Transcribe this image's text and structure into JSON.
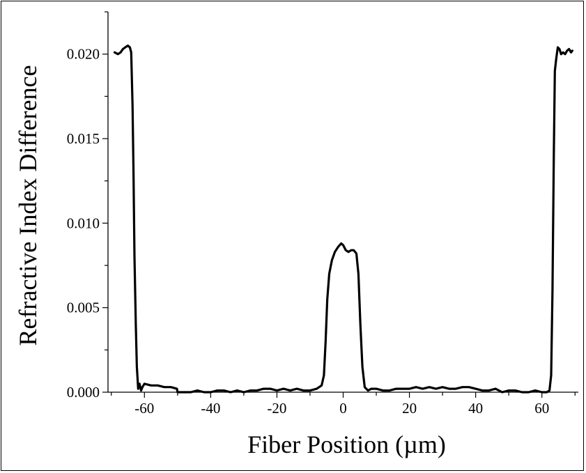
{
  "chart_data": {
    "type": "line",
    "title": "",
    "xlabel": "Fiber Position (µm)",
    "ylabel": "Refractive Index Difference",
    "xlim": [
      -71,
      71
    ],
    "ylim": [
      0,
      0.0225
    ],
    "x_ticks": [
      -60,
      -40,
      -20,
      0,
      20,
      40,
      60
    ],
    "x_tick_labels": [
      "-60",
      "-40",
      "-20",
      "0",
      "20",
      "40",
      "60"
    ],
    "y_ticks": [
      0,
      0.005,
      0.01,
      0.015,
      0.02
    ],
    "y_tick_labels": [
      "0.000",
      "0.005",
      "0.010",
      "0.015",
      "0.020"
    ],
    "grid": false,
    "line_color": "#000000",
    "series": [
      {
        "values": [
          [
            -69,
            0.0201
          ],
          [
            -68,
            0.02
          ],
          [
            -67.2,
            0.0201
          ],
          [
            -66.5,
            0.0203
          ],
          [
            -65.8,
            0.0204
          ],
          [
            -65,
            0.0205
          ],
          [
            -64.4,
            0.0204
          ],
          [
            -64.0,
            0.0201
          ],
          [
            -63.6,
            0.017
          ],
          [
            -63.3,
            0.013
          ],
          [
            -63.0,
            0.008
          ],
          [
            -62.6,
            0.004
          ],
          [
            -62.3,
            0.0015
          ],
          [
            -61.9,
            0.0002
          ],
          [
            -61.5,
            0.0005
          ],
          [
            -61,
            0.0001
          ],
          [
            -60.6,
            0.0003
          ],
          [
            -60,
            0.0005
          ],
          [
            -58,
            0.0004
          ],
          [
            -56,
            0.0004
          ],
          [
            -54,
            0.0003
          ],
          [
            -52,
            0.0003
          ],
          [
            -50.2,
            0.0002
          ],
          [
            -50,
            0.0
          ],
          [
            -48,
            0.0
          ],
          [
            -46,
            0.0
          ],
          [
            -44,
            0.0001
          ],
          [
            -42,
            0.0
          ],
          [
            -40,
            0.0
          ],
          [
            -38,
            0.0001
          ],
          [
            -36,
            0.0001
          ],
          [
            -34,
            0.0
          ],
          [
            -32,
            0.0001
          ],
          [
            -30,
            0.0
          ],
          [
            -28,
            0.0001
          ],
          [
            -26,
            0.0001
          ],
          [
            -24,
            0.0002
          ],
          [
            -22,
            0.0002
          ],
          [
            -20,
            0.0001
          ],
          [
            -18,
            0.0002
          ],
          [
            -16,
            0.0001
          ],
          [
            -14,
            0.0002
          ],
          [
            -12,
            0.0001
          ],
          [
            -10,
            0.0001
          ],
          [
            -8,
            0.0002
          ],
          [
            -6.5,
            0.0004
          ],
          [
            -5.8,
            0.001
          ],
          [
            -5.3,
            0.003
          ],
          [
            -4.8,
            0.0055
          ],
          [
            -4.2,
            0.007
          ],
          [
            -3.4,
            0.0078
          ],
          [
            -2.5,
            0.0083
          ],
          [
            -1.5,
            0.0086
          ],
          [
            -0.6,
            0.0088
          ],
          [
            0,
            0.0087
          ],
          [
            0.8,
            0.0084
          ],
          [
            1.6,
            0.0083
          ],
          [
            2.4,
            0.0084
          ],
          [
            3.2,
            0.0084
          ],
          [
            4.0,
            0.0082
          ],
          [
            4.6,
            0.007
          ],
          [
            5.2,
            0.004
          ],
          [
            5.8,
            0.0015
          ],
          [
            6.5,
            0.0003
          ],
          [
            7.5,
            0.0001
          ],
          [
            8.5,
            0.0002
          ],
          [
            10,
            0.0002
          ],
          [
            12,
            0.0001
          ],
          [
            14,
            0.0001
          ],
          [
            16,
            0.0002
          ],
          [
            18,
            0.0002
          ],
          [
            20,
            0.0002
          ],
          [
            22,
            0.0003
          ],
          [
            24,
            0.0002
          ],
          [
            26,
            0.0003
          ],
          [
            28,
            0.0002
          ],
          [
            30,
            0.0003
          ],
          [
            32,
            0.0002
          ],
          [
            34,
            0.0002
          ],
          [
            36,
            0.0003
          ],
          [
            38,
            0.0003
          ],
          [
            40,
            0.0002
          ],
          [
            42,
            0.0001
          ],
          [
            44,
            0.0001
          ],
          [
            46,
            0.0002
          ],
          [
            48,
            0.0
          ],
          [
            50,
            0.0001
          ],
          [
            52,
            0.0001
          ],
          [
            54,
            0.0
          ],
          [
            56,
            0.0
          ],
          [
            58,
            0.0001
          ],
          [
            60,
            0.0
          ],
          [
            61.5,
            0.0
          ],
          [
            62.3,
            0.0001
          ],
          [
            62.8,
            0.001
          ],
          [
            63.2,
            0.006
          ],
          [
            63.6,
            0.014
          ],
          [
            63.9,
            0.019
          ],
          [
            64.3,
            0.0197
          ],
          [
            64.8,
            0.0204
          ],
          [
            65.3,
            0.0203
          ],
          [
            65.8,
            0.02
          ],
          [
            66.4,
            0.0201
          ],
          [
            67,
            0.02
          ],
          [
            67.6,
            0.0202
          ],
          [
            68.2,
            0.0203
          ],
          [
            68.8,
            0.0201
          ],
          [
            69.2,
            0.0202
          ]
        ]
      }
    ]
  }
}
